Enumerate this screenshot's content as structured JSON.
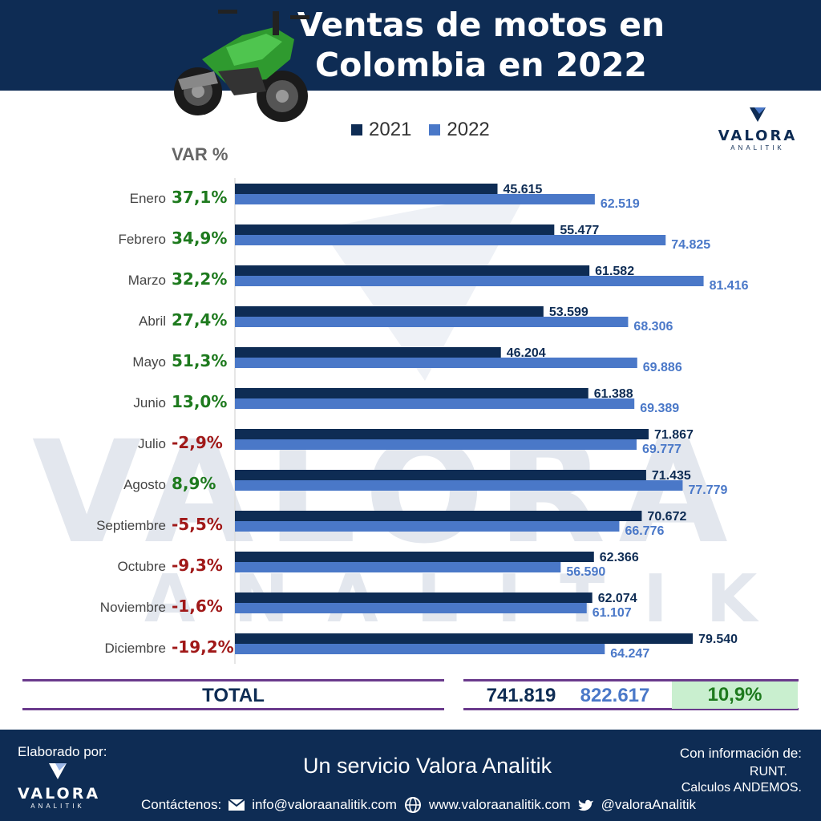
{
  "header": {
    "title_line1": "Ventas de motos en",
    "title_line2": "Colombia en 2022"
  },
  "brand": {
    "name": "VALORA",
    "sub": "ANALITIK"
  },
  "var_header": "VAR %",
  "colors": {
    "s2021": "#0e2c54",
    "s2022": "#4a78c8",
    "positive": "#1e7a1e",
    "negative": "#a01818",
    "total_bg": "#c9efcf"
  },
  "chart_data": {
    "type": "bar",
    "orientation": "horizontal",
    "categories": [
      "Enero",
      "Febrero",
      "Marzo",
      "Abril",
      "Mayo",
      "Junio",
      "Julio",
      "Agosto",
      "Septiembre",
      "Octubre",
      "Noviembre",
      "Diciembre"
    ],
    "series": [
      {
        "name": "2021",
        "values": [
          45615,
          55477,
          61582,
          53599,
          46204,
          61388,
          71867,
          71435,
          70672,
          62366,
          62074,
          79540
        ],
        "labels": [
          "45.615",
          "55.477",
          "61.582",
          "53.599",
          "46.204",
          "61.388",
          "71.867",
          "71.435",
          "70.672",
          "62.366",
          "62.074",
          "79.540"
        ]
      },
      {
        "name": "2022",
        "values": [
          62519,
          74825,
          81416,
          68306,
          69886,
          69389,
          69777,
          77779,
          66776,
          56590,
          61107,
          64247
        ],
        "labels": [
          "62.519",
          "74.825",
          "81.416",
          "68.306",
          "69.886",
          "69.389",
          "69.777",
          "77.779",
          "66.776",
          "56.590",
          "61.107",
          "64.247"
        ]
      }
    ],
    "var_pct": [
      "37,1%",
      "34,9%",
      "32,2%",
      "27,4%",
      "51,3%",
      "13,0%",
      "-2,9%",
      "8,9%",
      "-5,5%",
      "-9,3%",
      "-1,6%",
      "-19,2%"
    ],
    "xlim": [
      0,
      100000
    ],
    "legend": "top"
  },
  "total": {
    "label": "TOTAL",
    "v2021": "741.819",
    "v2022": "822.617",
    "var": "10,9%"
  },
  "footer": {
    "elaborado": "Elaborado por:",
    "service": "Un servicio Valora Analitik",
    "info_title": "Con información de:",
    "info_line1": "RUNT.",
    "info_line2": "Calculos ANDEMOS.",
    "contact_label": "Contáctenos:",
    "email": "info@valoraanalitik.com",
    "web": "www.valoraanalitik.com",
    "twitter": "@valoraAnalitik"
  }
}
